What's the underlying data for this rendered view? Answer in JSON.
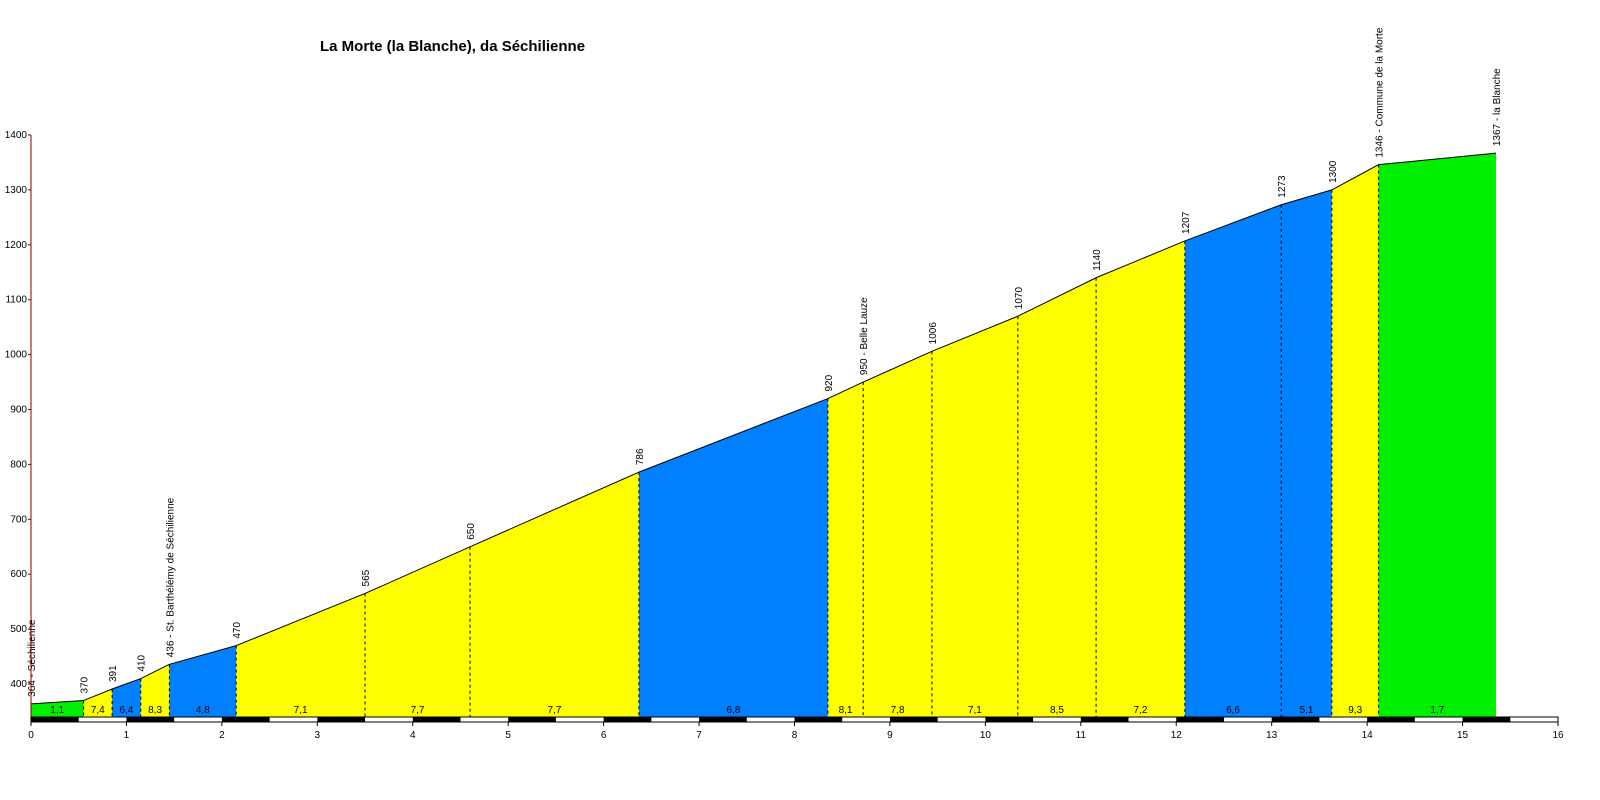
{
  "chart_data": {
    "type": "area",
    "title": "La Morte (la Blanche), da Séchilienne",
    "xlabel": "",
    "ylabel": "",
    "xlim": [
      0,
      16
    ],
    "ylim": [
      340,
      1400
    ],
    "x_ticks": [
      0,
      1,
      2,
      3,
      4,
      5,
      6,
      7,
      8,
      9,
      10,
      11,
      12,
      13,
      14,
      15,
      16
    ],
    "y_ticks": [
      400,
      500,
      600,
      700,
      800,
      900,
      1000,
      1100,
      1200,
      1300,
      1400
    ],
    "grid": false,
    "colors": {
      "easy": "#00ee00",
      "moderate": "#ffff00",
      "hard": "#0080ff",
      "axis": "#800000"
    },
    "points": [
      {
        "x": 0.0,
        "y": 364,
        "label": "364 - Séchilienne"
      },
      {
        "x": 0.55,
        "y": 370,
        "label": "370"
      },
      {
        "x": 0.85,
        "y": 391,
        "label": "391"
      },
      {
        "x": 1.15,
        "y": 410,
        "label": "410"
      },
      {
        "x": 1.45,
        "y": 436,
        "label": "436 - St. Barthélémy de Séchilienne"
      },
      {
        "x": 2.15,
        "y": 470,
        "label": "470"
      },
      {
        "x": 3.5,
        "y": 565,
        "label": "565"
      },
      {
        "x": 4.6,
        "y": 650,
        "label": "650"
      },
      {
        "x": 6.37,
        "y": 786,
        "label": "786"
      },
      {
        "x": 8.35,
        "y": 920,
        "label": "920"
      },
      {
        "x": 8.72,
        "y": 950,
        "label": "950 - Belle Lauze"
      },
      {
        "x": 9.44,
        "y": 1006,
        "label": "1006"
      },
      {
        "x": 10.34,
        "y": 1070,
        "label": "1070"
      },
      {
        "x": 11.16,
        "y": 1140,
        "label": "1140"
      },
      {
        "x": 12.09,
        "y": 1207,
        "label": "1207"
      },
      {
        "x": 13.1,
        "y": 1273,
        "label": "1273"
      },
      {
        "x": 13.63,
        "y": 1300,
        "label": "1300"
      },
      {
        "x": 14.12,
        "y": 1346,
        "label": "1346 - Commune de la Morte"
      },
      {
        "x": 15.35,
        "y": 1367,
        "label": "1367 - la Blanche"
      }
    ],
    "segments": [
      {
        "gradient": "1,1",
        "color": "easy"
      },
      {
        "gradient": "7,4",
        "color": "moderate"
      },
      {
        "gradient": "6,4",
        "color": "hard"
      },
      {
        "gradient": "8,3",
        "color": "moderate"
      },
      {
        "gradient": "4,8",
        "color": "hard"
      },
      {
        "gradient": "7,1",
        "color": "moderate"
      },
      {
        "gradient": "7,7",
        "color": "moderate"
      },
      {
        "gradient": "7,7",
        "color": "moderate"
      },
      {
        "gradient": "6,8",
        "color": "hard"
      },
      {
        "gradient": "8,1",
        "color": "moderate"
      },
      {
        "gradient": "7,8",
        "color": "moderate"
      },
      {
        "gradient": "7,1",
        "color": "moderate"
      },
      {
        "gradient": "8,5",
        "color": "moderate"
      },
      {
        "gradient": "7,2",
        "color": "moderate"
      },
      {
        "gradient": "6,6",
        "color": "hard"
      },
      {
        "gradient": "5,1",
        "color": "hard"
      },
      {
        "gradient": "9,3",
        "color": "moderate"
      },
      {
        "gradient": "1,7",
        "color": "easy"
      }
    ]
  }
}
